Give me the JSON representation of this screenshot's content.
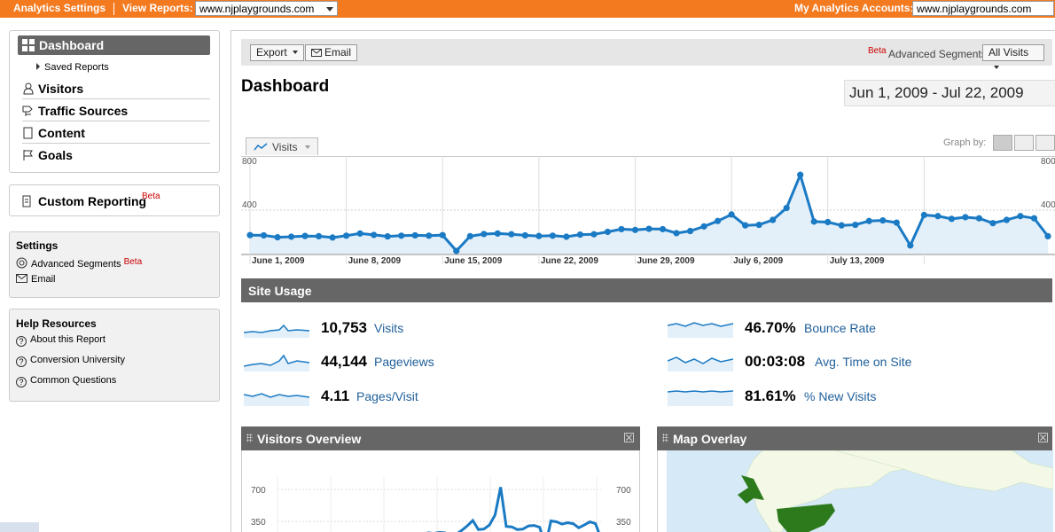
{
  "topbar": {
    "analytics_settings": "Analytics Settings",
    "view_reports_label": "View Reports:",
    "view_reports_value": "www.njplaygrounds.com",
    "my_accounts_label": "My Analytics Accounts:",
    "my_accounts_value": "www.njplaygrounds.com"
  },
  "nav": {
    "dashboard": "Dashboard",
    "saved_reports": "Saved Reports",
    "visitors": "Visitors",
    "traffic_sources": "Traffic Sources",
    "content": "Content",
    "goals": "Goals"
  },
  "custom_reporting": {
    "label": "Custom Reporting",
    "badge": "Beta"
  },
  "settings": {
    "title": "Settings",
    "advanced_segments": "Advanced Segments",
    "advanced_segments_badge": "Beta",
    "email": "Email"
  },
  "help": {
    "title": "Help Resources",
    "items": [
      "About this Report",
      "Conversion University",
      "Common Questions"
    ]
  },
  "toolbar": {
    "export_label": "Export",
    "email_label": "Email",
    "beta_badge": "Beta",
    "segments_label": "Advanced Segments:",
    "segments_value": "All Visits"
  },
  "page_title": "Dashboard",
  "date_range": "Jun 1, 2009 - Jul 22, 2009",
  "chart_tab": "Visits",
  "graph_by_label": "Graph by:",
  "chart_data": [
    {
      "type": "line",
      "series": [
        {
          "name": "Visits",
          "values": [
            170,
            168,
            150,
            155,
            162,
            160,
            148,
            165,
            185,
            172,
            158,
            165,
            168,
            165,
            170,
            25,
            160,
            180,
            185,
            178,
            168,
            162,
            165,
            155,
            175,
            178,
            200,
            225,
            218,
            228,
            225,
            188,
            208,
            250,
            300,
            360,
            260,
            265,
            310,
            420,
            725,
            295,
            290,
            260,
            265,
            300,
            305,
            285,
            75,
            355,
            345,
            320,
            335,
            325,
            280,
            310,
            345,
            325,
            160
          ]
        }
      ],
      "x_tick_labels": [
        "June 1, 2009",
        "June 8, 2009",
        "June 15, 2009",
        "June 22, 2009",
        "June 29, 2009",
        "July 6, 2009",
        "July 13, 2009"
      ],
      "y_tick_labels": [
        "800",
        "400"
      ],
      "ylim": [
        0,
        800
      ],
      "grid": true
    },
    {
      "type": "line",
      "title": "Visitors Overview",
      "y_tick_labels": [
        "700",
        "350"
      ],
      "ylim": [
        0,
        700
      ],
      "grid": true
    }
  ],
  "site_usage": {
    "title": "Site Usage",
    "metrics": [
      {
        "value": "10,753",
        "label": "Visits"
      },
      {
        "value": "44,144",
        "label": "Pageviews"
      },
      {
        "value": "4.11",
        "label": "Pages/Visit"
      },
      {
        "value": "46.70%",
        "label": "Bounce Rate"
      },
      {
        "value": "00:03:08",
        "label": "Avg. Time on Site"
      },
      {
        "value": "81.61%",
        "label": "% New Visits"
      }
    ]
  },
  "visitors_overview": {
    "title": "Visitors Overview"
  },
  "map_overlay": {
    "title": "Map Overlay"
  },
  "colors": {
    "accent": "#f47a20",
    "line": "#1a7ac4",
    "fill": "#e3eff9",
    "link": "#1f5f9a"
  }
}
